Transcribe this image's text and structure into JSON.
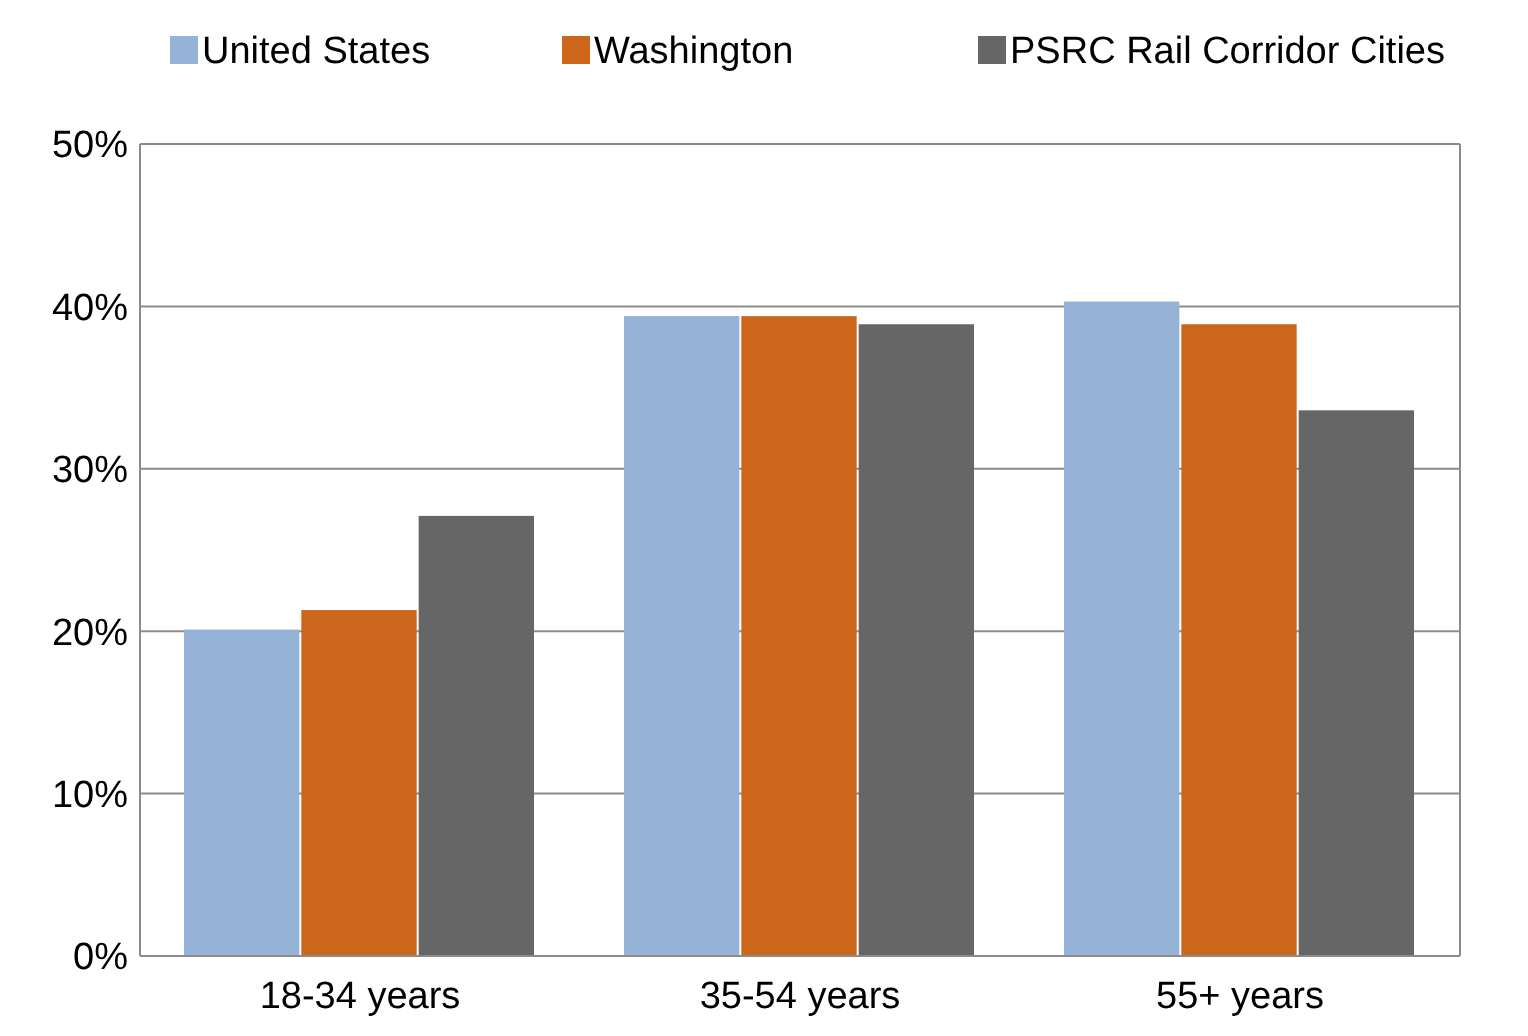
{
  "chart_data": {
    "type": "bar",
    "categories": [
      "18-34 years",
      "35-54 years",
      "55+ years"
    ],
    "series": [
      {
        "name": "United States",
        "color": "#95b3d7",
        "values": [
          20.1,
          39.4,
          40.3
        ]
      },
      {
        "name": "Washington",
        "color": "#cc661a",
        "values": [
          21.3,
          39.4,
          38.9
        ]
      },
      {
        "name": "PSRC Rail Corridor Cities",
        "color": "#666666",
        "values": [
          27.1,
          38.9,
          33.6
        ]
      }
    ],
    "ylim": [
      0,
      50
    ],
    "yticks": [
      {
        "value": 0,
        "label": "0%"
      },
      {
        "value": 10,
        "label": "10%"
      },
      {
        "value": 20,
        "label": "20%"
      },
      {
        "value": 30,
        "label": "30%"
      },
      {
        "value": 40,
        "label": "40%"
      },
      {
        "value": 50,
        "label": "50%"
      }
    ],
    "grid": "y",
    "legend": "top"
  }
}
